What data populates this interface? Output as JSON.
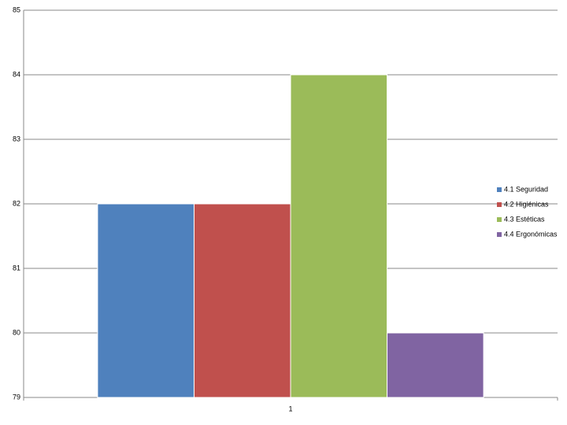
{
  "chart_data": {
    "type": "bar",
    "categories": [
      "1"
    ],
    "series": [
      {
        "name": "4.1 Seguridad",
        "color": "#4f81bd",
        "values": [
          82
        ]
      },
      {
        "name": "4.2 Higiénicas",
        "color": "#c0504d",
        "values": [
          82
        ]
      },
      {
        "name": "4.3 Estéticas",
        "color": "#9bbb59",
        "values": [
          84
        ]
      },
      {
        "name": "4.4 Ergonómicas",
        "color": "#8064a2",
        "values": [
          80
        ]
      }
    ],
    "ylim": [
      79,
      85
    ],
    "yticks": [
      79,
      80,
      81,
      82,
      83,
      84,
      85
    ],
    "grid": true,
    "legend": "right"
  }
}
